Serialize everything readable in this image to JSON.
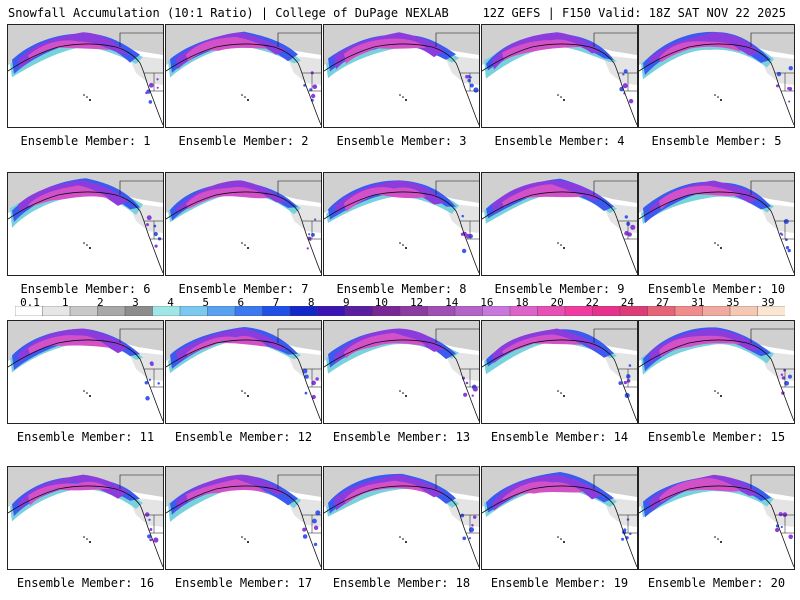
{
  "header": {
    "title_left": "Snowfall Accumulation (10:1 Ratio) | College of DuPage NEXLAB",
    "title_right": "12Z GEFS | F150 Valid: 18Z SAT NOV 22 2025"
  },
  "panels": [
    {
      "member": 1,
      "caption": "Ensemble Member: 1"
    },
    {
      "member": 2,
      "caption": "Ensemble Member: 2"
    },
    {
      "member": 3,
      "caption": "Ensemble Member: 3"
    },
    {
      "member": 4,
      "caption": "Ensemble Member: 4"
    },
    {
      "member": 5,
      "caption": "Ensemble Member: 5"
    },
    {
      "member": 6,
      "caption": "Ensemble Member: 6"
    },
    {
      "member": 7,
      "caption": "Ensemble Member: 7"
    },
    {
      "member": 8,
      "caption": "Ensemble Member: 8"
    },
    {
      "member": 9,
      "caption": "Ensemble Member: 9"
    },
    {
      "member": 10,
      "caption": "Ensemble Member: 10"
    },
    {
      "member": 11,
      "caption": "Ensemble Member: 11"
    },
    {
      "member": 12,
      "caption": "Ensemble Member: 12"
    },
    {
      "member": 13,
      "caption": "Ensemble Member: 13"
    },
    {
      "member": 14,
      "caption": "Ensemble Member: 14"
    },
    {
      "member": 15,
      "caption": "Ensemble Member: 15"
    },
    {
      "member": 16,
      "caption": "Ensemble Member: 16"
    },
    {
      "member": 17,
      "caption": "Ensemble Member: 17"
    },
    {
      "member": 18,
      "caption": "Ensemble Member: 18"
    },
    {
      "member": 19,
      "caption": "Ensemble Member: 19"
    },
    {
      "member": 20,
      "caption": "Ensemble Member: 20"
    }
  ],
  "legend": {
    "labels": [
      "0.1",
      "1",
      "2",
      "3",
      "4",
      "5",
      "6",
      "7",
      "8",
      "9",
      "10",
      "12",
      "14",
      "16",
      "18",
      "20",
      "22",
      "24",
      "27",
      "31",
      "35",
      "39"
    ],
    "colors": [
      "#ffffff",
      "#e6e6e6",
      "#c8c8c8",
      "#a8a8a8",
      "#8c8c8c",
      "#a0e6e6",
      "#7cc8f0",
      "#5aa0f0",
      "#3c78f0",
      "#2050e6",
      "#1428c8",
      "#3c14b4",
      "#5a1ea0",
      "#782896",
      "#8c3ca0",
      "#a050b4",
      "#b464c8",
      "#c878dc",
      "#dc64c8",
      "#e650b4",
      "#f03ca0",
      "#e6328c",
      "#dc3c78",
      "#e66478",
      "#f08c8c",
      "#f0aaa0",
      "#f5c8b4",
      "#fae6d2"
    ]
  },
  "map_colors": {
    "land_gray": "#c8c8c8",
    "blue": "#3c5af0",
    "purple": "#8c3cdc",
    "magenta": "#d250c8",
    "cyan": "#78d2dc",
    "outline": "#111111"
  }
}
